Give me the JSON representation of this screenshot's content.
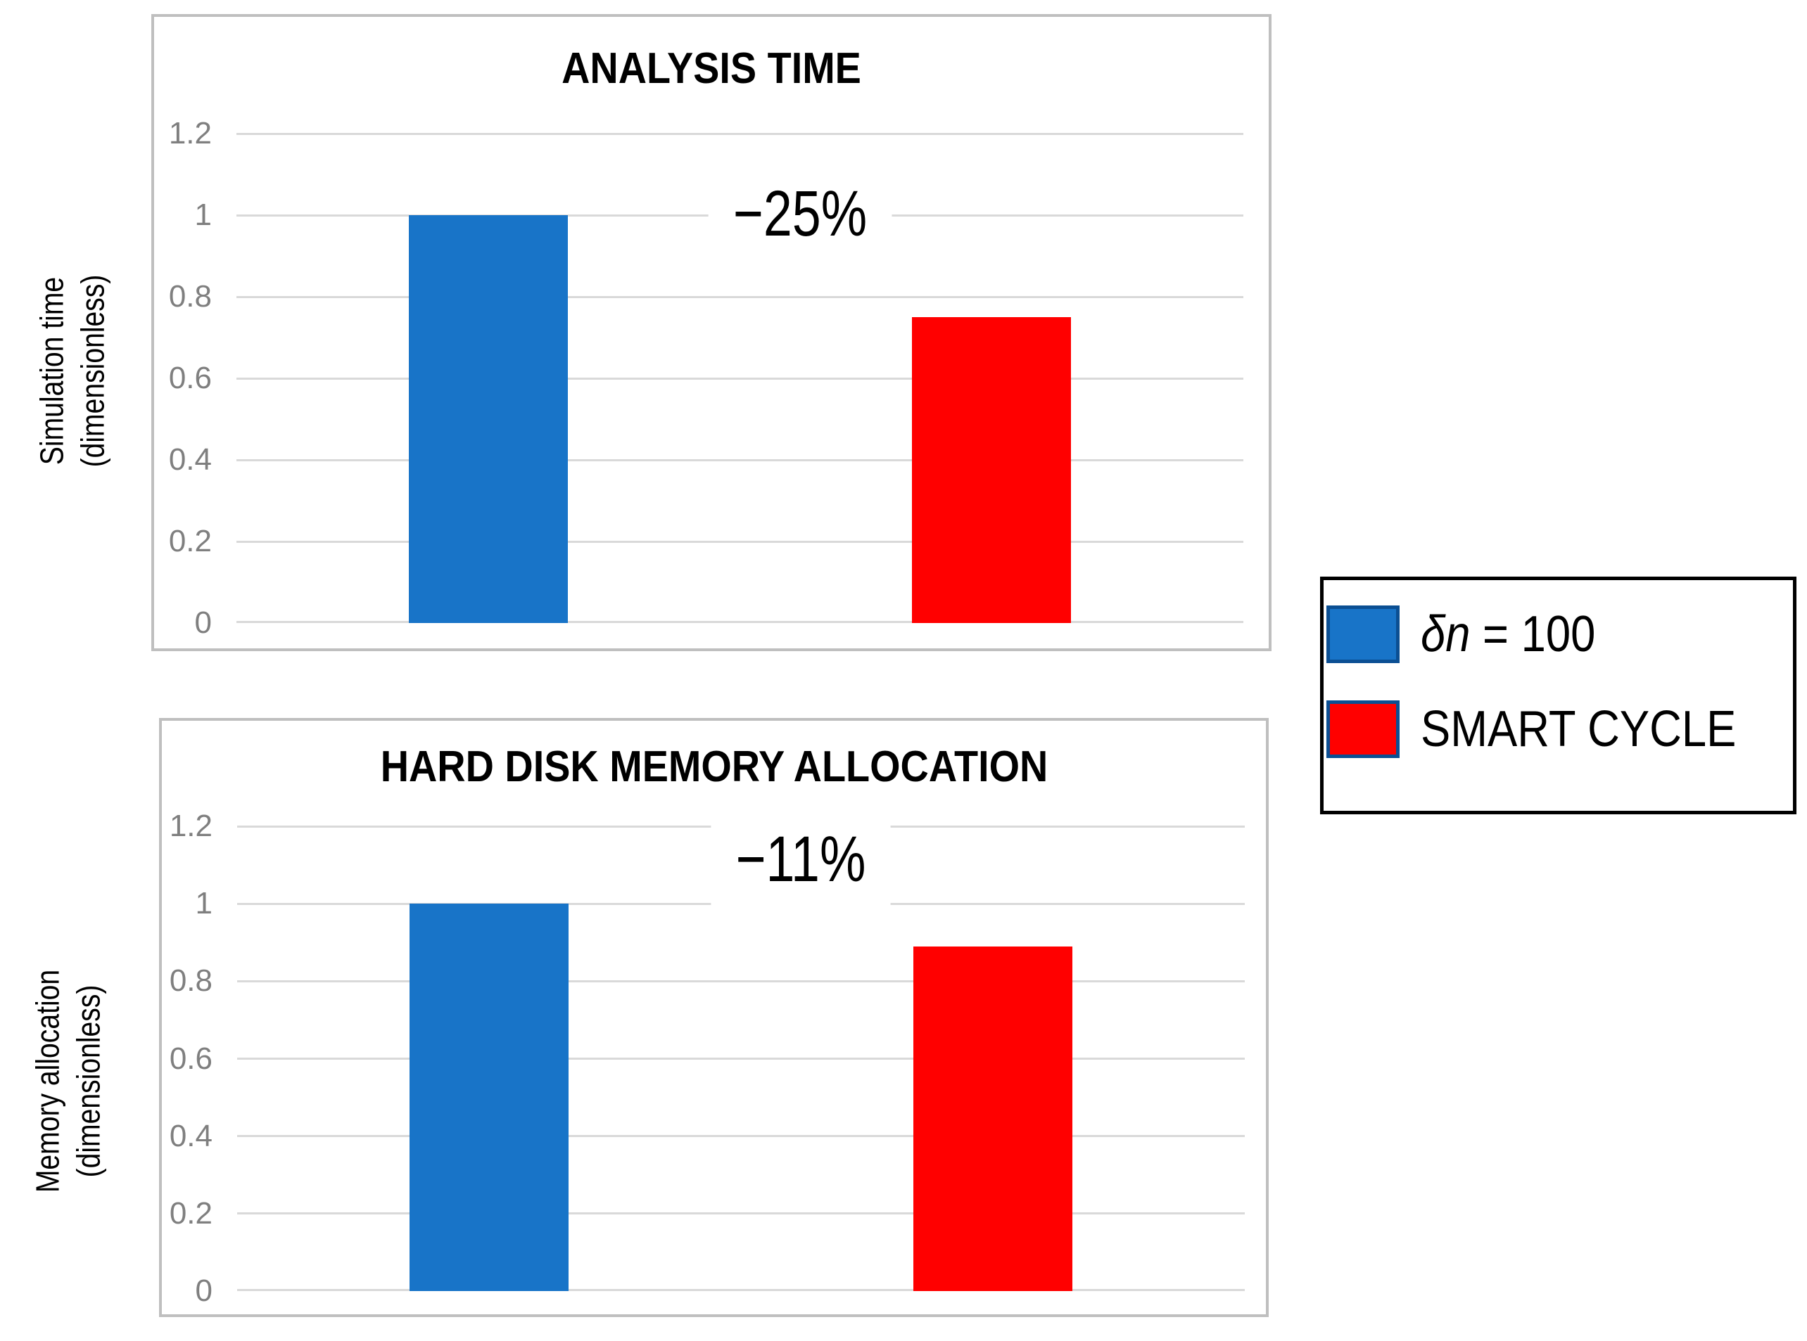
{
  "colors": {
    "bar_blue": "#1874C8",
    "bar_red": "#FF0000",
    "swatch_border_navy": "#0B4F93",
    "gridline_gray": "#D9D9D9",
    "chart_border_gray": "#BFBFBF",
    "tick_text_gray": "#7F7F7F"
  },
  "legend": {
    "items": [
      {
        "label": "δn = 100",
        "label_italic": "δn",
        "label_rest": " = 100",
        "color": "#1874C8"
      },
      {
        "label": "SMART CYCLE",
        "label_italic": "",
        "label_rest": "SMART CYCLE",
        "color": "#FF0000"
      }
    ]
  },
  "chart_data": [
    {
      "type": "bar",
      "title": "ANALYSIS TIME",
      "ylabel": "Simulation time (dimensionless)",
      "ylabel_lines": [
        "Simulation time",
        "(dimensionless)"
      ],
      "xlabel": "",
      "categories": [
        "δn = 100",
        "SMART CYCLE"
      ],
      "values": [
        1,
        0.75
      ],
      "bar_colors": [
        "#1874C8",
        "#FF0000"
      ],
      "annotation": "−25%",
      "ylim": [
        0,
        1.2
      ],
      "ytick_values": [
        1.2,
        1,
        0.8,
        0.6,
        0.4,
        0.2,
        0
      ],
      "ytick_labels": [
        "1.2",
        "1",
        "0.8",
        "0.6",
        "0.4",
        "0.2",
        "0"
      ],
      "grid": true,
      "legend_position": "outside-right"
    },
    {
      "type": "bar",
      "title": "HARD DISK MEMORY ALLOCATION",
      "ylabel": "Memory allocation (dimensionless)",
      "ylabel_lines": [
        "Memory allocation",
        "(dimensionless)"
      ],
      "xlabel": "",
      "categories": [
        "δn = 100",
        "SMART CYCLE"
      ],
      "values": [
        1,
        0.89
      ],
      "bar_colors": [
        "#1874C8",
        "#FF0000"
      ],
      "annotation": "−11%",
      "ylim": [
        0,
        1.2
      ],
      "ytick_values": [
        1.2,
        1,
        0.8,
        0.6,
        0.4,
        0.2,
        0
      ],
      "ytick_labels": [
        "1.2",
        "1",
        "0.8",
        "0.6",
        "0.4",
        "0.2",
        "0"
      ],
      "grid": true,
      "legend_position": "outside-right"
    }
  ]
}
